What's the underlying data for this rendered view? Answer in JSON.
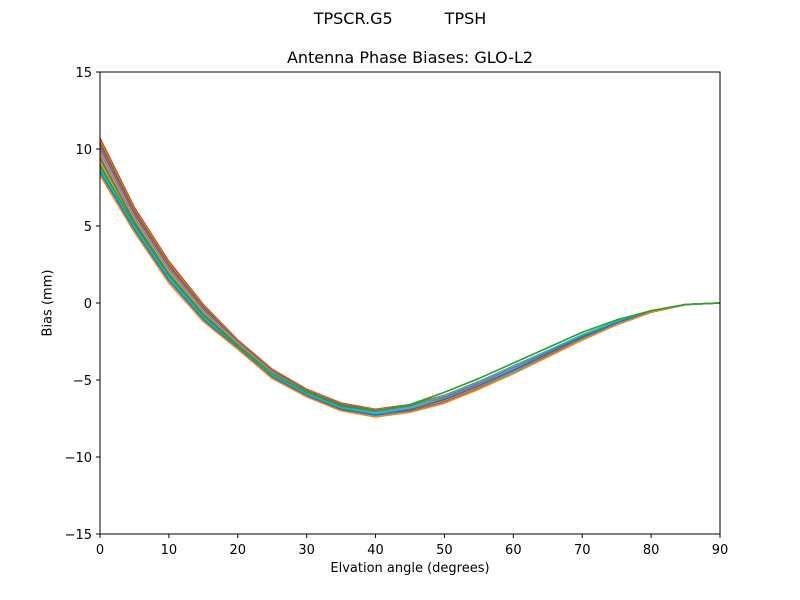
{
  "suptitle": {
    "left": "TPSCR.G5",
    "right": "TPSH"
  },
  "chart_data": {
    "type": "line",
    "title": "Antenna Phase Biases: GLO-L2",
    "xlabel": "Elvation angle (degrees)",
    "ylabel": "Bias (mm)",
    "xlim": [
      0,
      90
    ],
    "ylim": [
      -15,
      15
    ],
    "xticks": [
      0,
      10,
      20,
      30,
      40,
      50,
      60,
      70,
      80,
      90
    ],
    "yticks": [
      -15,
      -10,
      -5,
      0,
      5,
      10,
      15
    ],
    "ytick_labels": [
      "−15",
      "−10",
      "−5",
      "0",
      "5",
      "10",
      "15"
    ],
    "grid": false,
    "legend": null,
    "x": [
      0,
      5,
      10,
      15,
      20,
      25,
      30,
      35,
      40,
      45,
      50,
      55,
      60,
      65,
      70,
      75,
      80,
      85,
      90
    ],
    "series": [
      {
        "name": "curve-1",
        "color": "#d62728",
        "values": [
          10.7,
          6.2,
          2.7,
          -0.1,
          -2.4,
          -4.3,
          -5.6,
          -6.5,
          -6.9,
          -6.6,
          -6.0,
          -5.1,
          -4.1,
          -3.1,
          -2.1,
          -1.2,
          -0.5,
          -0.1,
          0.0
        ]
      },
      {
        "name": "curve-2",
        "color": "#8c564b",
        "values": [
          10.3,
          5.9,
          2.4,
          -0.3,
          -2.5,
          -4.4,
          -5.7,
          -6.6,
          -7.0,
          -6.7,
          -6.1,
          -5.2,
          -4.2,
          -3.2,
          -2.2,
          -1.3,
          -0.6,
          -0.1,
          0.0
        ]
      },
      {
        "name": "curve-3",
        "color": "#e377c2",
        "values": [
          9.9,
          5.6,
          2.2,
          -0.5,
          -2.6,
          -4.5,
          -5.8,
          -6.7,
          -7.1,
          -6.8,
          -6.2,
          -5.3,
          -4.3,
          -3.3,
          -2.3,
          -1.3,
          -0.6,
          -0.1,
          0.0
        ]
      },
      {
        "name": "curve-4",
        "color": "#7f7f7f",
        "values": [
          9.5,
          5.3,
          1.9,
          -0.7,
          -2.7,
          -4.6,
          -5.9,
          -6.8,
          -7.2,
          -6.9,
          -6.3,
          -5.4,
          -4.4,
          -3.4,
          -2.3,
          -1.4,
          -0.6,
          -0.1,
          0.0
        ]
      },
      {
        "name": "curve-5",
        "color": "#bcbd22",
        "values": [
          9.1,
          5.0,
          1.7,
          -0.9,
          -2.8,
          -4.7,
          -6.0,
          -6.9,
          -7.3,
          -7.0,
          -6.4,
          -5.5,
          -4.5,
          -3.4,
          -2.4,
          -1.4,
          -0.6,
          -0.1,
          0.0
        ]
      },
      {
        "name": "curve-6",
        "color": "#17becf",
        "values": [
          8.7,
          4.8,
          1.5,
          -1.0,
          -2.9,
          -4.8,
          -6.0,
          -6.9,
          -7.3,
          -7.1,
          -6.5,
          -5.6,
          -4.5,
          -3.5,
          -2.4,
          -1.4,
          -0.6,
          -0.1,
          0.0
        ]
      },
      {
        "name": "curve-7",
        "color": "#2ca02c",
        "values": [
          8.9,
          5.1,
          1.8,
          -0.8,
          -2.8,
          -4.6,
          -5.8,
          -6.7,
          -7.0,
          -6.6,
          -5.8,
          -4.9,
          -3.9,
          -2.9,
          -1.9,
          -1.1,
          -0.5,
          -0.1,
          0.0
        ]
      },
      {
        "name": "curve-8",
        "color": "#ff7f0e",
        "values": [
          8.3,
          4.6,
          1.3,
          -1.2,
          -3.0,
          -4.9,
          -6.1,
          -7.0,
          -7.4,
          -7.1,
          -6.5,
          -5.6,
          -4.6,
          -3.5,
          -2.4,
          -1.4,
          -0.6,
          -0.1,
          0.0
        ]
      }
    ]
  }
}
